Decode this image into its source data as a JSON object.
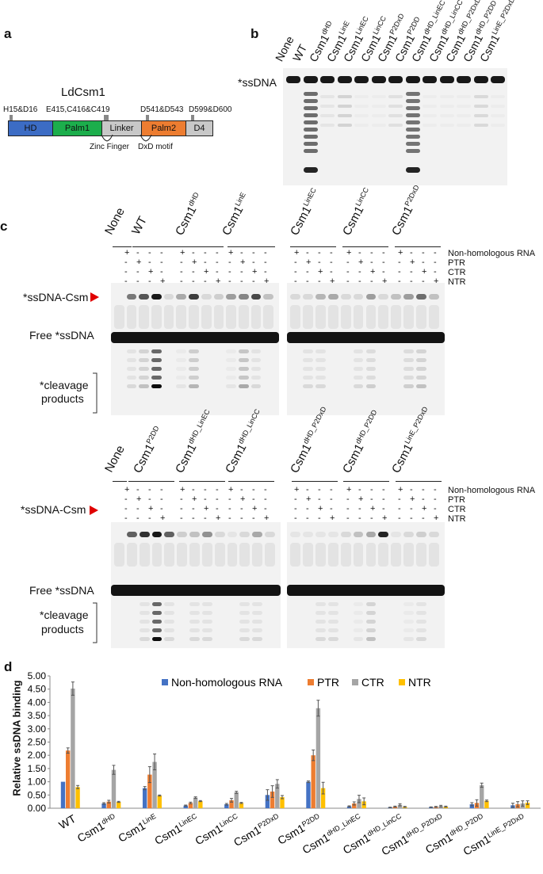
{
  "panels": {
    "a": "a",
    "b": "b",
    "c": "c",
    "d": "d"
  },
  "panel_a": {
    "title": "LdCsm1",
    "sites": [
      "H15&D16",
      "E415,C416&C419",
      "D541&D543",
      "D599&D600"
    ],
    "domains": [
      {
        "label": "HD",
        "color": "#3c6cc4"
      },
      {
        "label": "Palm1",
        "color": "#1cae4c"
      },
      {
        "label": "Linker",
        "color": "#c8c8c8"
      },
      {
        "label": "Palm2",
        "color": "#ed7d31"
      },
      {
        "label": "D4",
        "color": "#c8c8c8"
      }
    ],
    "motifs": [
      "Zinc Finger",
      "DxD motif"
    ]
  },
  "panel_b": {
    "band_label": "*ssDNA",
    "lanes": [
      {
        "base": "None",
        "sup": ""
      },
      {
        "base": "WT",
        "sup": ""
      },
      {
        "base": "Csm1",
        "sup": "dHD"
      },
      {
        "base": "Csm1",
        "sup": "LinE"
      },
      {
        "base": "Csm1",
        "sup": "LinEC"
      },
      {
        "base": "Csm1",
        "sup": "LinCC"
      },
      {
        "base": "Csm1",
        "sup": "P2DxD"
      },
      {
        "base": "Csm1",
        "sup": "P2DD"
      },
      {
        "base": "Csm1",
        "sup": "dHD_LinEC"
      },
      {
        "base": "Csm1",
        "sup": "dHD_LinCC"
      },
      {
        "base": "Csm1",
        "sup": "dHD_P2DxD"
      },
      {
        "base": "Csm1",
        "sup": "dHD_P2DD"
      },
      {
        "base": "Csm1",
        "sup": "LinE_P2DxD"
      }
    ]
  },
  "panel_c": {
    "row_labels": [
      "Non-homologous RNA",
      "PTR",
      "CTR",
      "NTR"
    ],
    "band_labels": {
      "complex": "*ssDNA-Csm",
      "free": "Free *ssDNA",
      "cleavage_1": "*cleavage",
      "cleavage_2": "products"
    },
    "top_groups": [
      {
        "base": "None",
        "sup": ""
      },
      {
        "base": "WT",
        "sup": ""
      },
      {
        "base": "Csm1",
        "sup": "dHD"
      },
      {
        "base": "Csm1",
        "sup": "LinE"
      },
      {
        "base": "Csm1",
        "sup": "LinEC"
      },
      {
        "base": "Csm1",
        "sup": "LinCC"
      },
      {
        "base": "Csm1",
        "sup": "P2DxD"
      }
    ],
    "bottom_groups": [
      {
        "base": "None",
        "sup": ""
      },
      {
        "base": "Csm1",
        "sup": "P2DD"
      },
      {
        "base": "Csm1",
        "sup": "dHD_LinEC"
      },
      {
        "base": "Csm1",
        "sup": "dHD_LinCC"
      },
      {
        "base": "Csm1",
        "sup": "dHD_P2DxD"
      },
      {
        "base": "Csm1",
        "sup": "dHD_P2DD"
      },
      {
        "base": "Csm1",
        "sup": "LinE_P2DxD"
      }
    ],
    "sign_rows": [
      [
        "+",
        "-",
        "-",
        "-"
      ],
      [
        "-",
        "+",
        "-",
        "-"
      ],
      [
        "-",
        "-",
        "+",
        "-"
      ],
      [
        "-",
        "-",
        "-",
        "+"
      ]
    ]
  },
  "chart_data": {
    "type": "bar",
    "title": "",
    "xlabel": "",
    "ylabel": "Relative ssDNA binding",
    "ylim": [
      0,
      5.0
    ],
    "yticks": [
      "0.00",
      "0.50",
      "1.00",
      "1.50",
      "2.00",
      "2.50",
      "3.00",
      "3.50",
      "4.00",
      "4.50",
      "5.00"
    ],
    "legend_position": "top",
    "categories": [
      {
        "base": "WT",
        "sup": ""
      },
      {
        "base": "Csm1",
        "sup": "dHD"
      },
      {
        "base": "Csm1",
        "sup": "LinE"
      },
      {
        "base": "Csm1",
        "sup": "LinEC"
      },
      {
        "base": "Csm1",
        "sup": "LinCC"
      },
      {
        "base": "Csm1",
        "sup": "P2DxD"
      },
      {
        "base": "Csm1",
        "sup": "P2DD"
      },
      {
        "base": "Csm1",
        "sup": "dHD_LinEC"
      },
      {
        "base": "Csm1",
        "sup": "dHD_LinCC"
      },
      {
        "base": "Csm1",
        "sup": "dHD_P2DxD"
      },
      {
        "base": "Csm1",
        "sup": "dHD_P2DD"
      },
      {
        "base": "Csm1",
        "sup": "LinE_P2DxD"
      }
    ],
    "series": [
      {
        "name": "Non-homologous RNA",
        "color": "#4472c4",
        "values": [
          1.0,
          0.18,
          0.76,
          0.1,
          0.15,
          0.5,
          1.0,
          0.07,
          0.03,
          0.04,
          0.15,
          0.11
        ],
        "errors": [
          0.0,
          0.03,
          0.06,
          0.02,
          0.03,
          0.2,
          0.03,
          0.02,
          0.01,
          0.01,
          0.06,
          0.08
        ]
      },
      {
        "name": "PTR",
        "color": "#ed7d31",
        "values": [
          2.18,
          0.25,
          1.27,
          0.2,
          0.3,
          0.63,
          2.0,
          0.18,
          0.06,
          0.05,
          0.2,
          0.15
        ],
        "errors": [
          0.1,
          0.05,
          0.3,
          0.03,
          0.07,
          0.22,
          0.2,
          0.06,
          0.02,
          0.02,
          0.12,
          0.1
        ]
      },
      {
        "name": "CTR",
        "color": "#a5a5a5",
        "values": [
          4.52,
          1.45,
          1.75,
          0.4,
          0.6,
          0.92,
          3.78,
          0.35,
          0.13,
          0.08,
          0.87,
          0.18
        ],
        "errors": [
          0.25,
          0.17,
          0.3,
          0.03,
          0.04,
          0.16,
          0.3,
          0.14,
          0.04,
          0.03,
          0.08,
          0.1
        ]
      },
      {
        "name": "NTR",
        "color": "#ffc000",
        "values": [
          0.8,
          0.24,
          0.48,
          0.27,
          0.2,
          0.42,
          0.76,
          0.26,
          0.05,
          0.06,
          0.28,
          0.21
        ],
        "errors": [
          0.06,
          0.02,
          0.02,
          0.02,
          0.02,
          0.06,
          0.22,
          0.13,
          0.02,
          0.02,
          0.03,
          0.07
        ]
      }
    ]
  }
}
